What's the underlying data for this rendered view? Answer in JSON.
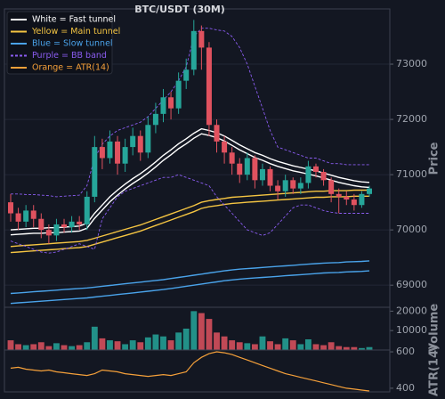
{
  "chart_data": [
    {
      "type": "candlestick",
      "title": "BTC/USDT (30M)",
      "ylabel": "Price",
      "up_color": "#26a69a",
      "down_color": "#e0525f",
      "open": [
        70500,
        70300,
        70150,
        70350,
        70200,
        70000,
        69900,
        70100,
        70050,
        70150,
        70100,
        70600,
        71500,
        71300,
        71600,
        71200,
        71500,
        71700,
        71400,
        71900,
        72100,
        72400,
        72200,
        72700,
        72900,
        73600,
        73300,
        71900,
        71600,
        71400,
        71200,
        71000,
        71300,
        70900,
        71100,
        70800,
        70700,
        70900,
        70750,
        70850,
        71150,
        71050,
        70900,
        70650,
        70600,
        70550,
        70450,
        70650
      ],
      "high": [
        70650,
        70400,
        70450,
        70450,
        70300,
        70100,
        70200,
        70200,
        70250,
        70250,
        70700,
        71700,
        71650,
        71800,
        71700,
        71650,
        71850,
        71800,
        72050,
        72300,
        72550,
        72500,
        72850,
        73100,
        73800,
        73700,
        73400,
        72000,
        71700,
        71500,
        71300,
        71400,
        71350,
        71200,
        71150,
        70900,
        71000,
        70950,
        70950,
        71250,
        71200,
        71100,
        70950,
        70750,
        70700,
        70650,
        70700,
        70800
      ],
      "low": [
        70150,
        70000,
        70050,
        70050,
        69850,
        69750,
        69800,
        69950,
        69950,
        70000,
        70000,
        70500,
        71100,
        71200,
        71000,
        71050,
        71350,
        71250,
        71300,
        71750,
        71950,
        72000,
        72100,
        72550,
        72800,
        72900,
        71700,
        71400,
        71200,
        71000,
        70850,
        70900,
        70750,
        70800,
        70700,
        70550,
        70600,
        70650,
        70650,
        70750,
        70950,
        70800,
        70500,
        70300,
        70450,
        70350,
        70400,
        70600
      ],
      "close": [
        70300,
        70150,
        70350,
        70200,
        70000,
        69900,
        70100,
        70050,
        70150,
        70100,
        70600,
        71500,
        71300,
        71600,
        71200,
        71500,
        71700,
        71400,
        71900,
        72100,
        72400,
        72200,
        72700,
        72900,
        73600,
        73300,
        71900,
        71600,
        71400,
        71200,
        71000,
        71300,
        70900,
        71100,
        70800,
        70700,
        70900,
        70750,
        70850,
        71150,
        71050,
        70900,
        70650,
        70600,
        70550,
        70450,
        70650,
        70750
      ],
      "series": [
        {
          "name": "White = Fast tunnel",
          "color": "#ffffff",
          "dash": false,
          "upper": [
            70000,
            70010,
            70020,
            70030,
            70030,
            70040,
            70040,
            70050,
            70060,
            70070,
            70120,
            70300,
            70450,
            70600,
            70720,
            70830,
            70930,
            71020,
            71120,
            71230,
            71350,
            71450,
            71560,
            71650,
            71750,
            71830,
            71800,
            71760,
            71700,
            71620,
            71540,
            71470,
            71400,
            71350,
            71290,
            71240,
            71200,
            71160,
            71130,
            71100,
            71070,
            71030,
            70990,
            70950,
            70920,
            70890,
            70870,
            70860
          ],
          "lower": [
            69910,
            69920,
            69930,
            69940,
            69940,
            69950,
            69950,
            69960,
            69970,
            69980,
            70030,
            70210,
            70360,
            70510,
            70630,
            70740,
            70840,
            70930,
            71030,
            71140,
            71260,
            71360,
            71470,
            71560,
            71660,
            71740,
            71710,
            71670,
            71610,
            71530,
            71450,
            71380,
            71310,
            71260,
            71200,
            71150,
            71110,
            71070,
            71040,
            71010,
            70980,
            70940,
            70900,
            70860,
            70830,
            70800,
            70780,
            70770
          ]
        },
        {
          "name": "Yellow = Main tunnel",
          "color": "#f5c542",
          "dash": false,
          "upper": [
            69700,
            69710,
            69720,
            69730,
            69740,
            69750,
            69760,
            69770,
            69780,
            69790,
            69810,
            69850,
            69890,
            69930,
            69970,
            70010,
            70050,
            70090,
            70140,
            70190,
            70240,
            70290,
            70340,
            70390,
            70440,
            70500,
            70530,
            70550,
            70570,
            70590,
            70600,
            70610,
            70620,
            70630,
            70640,
            70650,
            70660,
            70670,
            70680,
            70690,
            70700,
            70700,
            70710,
            70710,
            70710,
            70720,
            70720,
            70720
          ],
          "lower": [
            69590,
            69600,
            69610,
            69620,
            69630,
            69640,
            69650,
            69660,
            69670,
            69680,
            69700,
            69740,
            69780,
            69820,
            69860,
            69900,
            69940,
            69980,
            70030,
            70080,
            70130,
            70180,
            70230,
            70280,
            70330,
            70390,
            70420,
            70440,
            70460,
            70480,
            70490,
            70500,
            70510,
            70520,
            70530,
            70540,
            70550,
            70560,
            70570,
            70580,
            70590,
            70590,
            70600,
            70600,
            70600,
            70610,
            70610,
            70610
          ]
        },
        {
          "name": "Blue = Slow tunnel",
          "color": "#4aa3ea",
          "dash": false,
          "upper": [
            68850,
            68860,
            68870,
            68880,
            68890,
            68900,
            68910,
            68920,
            68930,
            68940,
            68950,
            68965,
            68980,
            68995,
            69010,
            69025,
            69040,
            69055,
            69070,
            69085,
            69100,
            69120,
            69140,
            69160,
            69180,
            69200,
            69220,
            69240,
            69260,
            69275,
            69290,
            69300,
            69310,
            69320,
            69330,
            69340,
            69350,
            69360,
            69370,
            69380,
            69390,
            69400,
            69405,
            69410,
            69420,
            69425,
            69430,
            69440
          ],
          "lower": [
            68670,
            68680,
            68690,
            68700,
            68710,
            68720,
            68730,
            68740,
            68750,
            68760,
            68770,
            68785,
            68800,
            68815,
            68830,
            68845,
            68860,
            68875,
            68890,
            68905,
            68920,
            68940,
            68960,
            68980,
            69000,
            69020,
            69040,
            69060,
            69080,
            69095,
            69110,
            69120,
            69130,
            69140,
            69150,
            69160,
            69170,
            69180,
            69190,
            69200,
            69210,
            69220,
            69225,
            69230,
            69240,
            69245,
            69250,
            69260
          ]
        },
        {
          "name": "Purple = BB band",
          "color": "#8a5cf0",
          "dash": true,
          "upper": [
            70650,
            70650,
            70640,
            70640,
            70630,
            70620,
            70600,
            70610,
            70620,
            70630,
            70800,
            71300,
            71550,
            71700,
            71800,
            71850,
            71900,
            71950,
            72050,
            72200,
            72350,
            72500,
            72700,
            72950,
            73500,
            73650,
            73650,
            73620,
            73600,
            73500,
            73300,
            73000,
            72600,
            72200,
            71800,
            71500,
            71450,
            71400,
            71350,
            71300,
            71300,
            71250,
            71200,
            71200,
            71180,
            71180,
            71180,
            71180
          ],
          "lower": [
            69800,
            69750,
            69700,
            69650,
            69600,
            69580,
            69600,
            69650,
            69700,
            69750,
            69700,
            69650,
            70200,
            70400,
            70600,
            70700,
            70750,
            70800,
            70850,
            70900,
            70950,
            70950,
            71000,
            70950,
            70900,
            70850,
            70800,
            70600,
            70450,
            70300,
            70150,
            70000,
            69950,
            69900,
            69950,
            70100,
            70250,
            70400,
            70450,
            70450,
            70400,
            70350,
            70320,
            70300,
            70300,
            70300,
            70300,
            70300
          ]
        }
      ],
      "ylim": [
        68600,
        74000
      ],
      "yticks": [
        69000,
        70000,
        71000,
        72000,
        73000
      ],
      "grid": true
    },
    {
      "type": "bar",
      "ylabel": "Volume",
      "values": [
        5000,
        3000,
        2500,
        3000,
        4000,
        2000,
        3500,
        2500,
        2000,
        2500,
        4000,
        12000,
        6000,
        5000,
        4500,
        3000,
        5000,
        4000,
        6500,
        8000,
        7000,
        5000,
        9000,
        11000,
        20000,
        19000,
        16000,
        9000,
        7000,
        5000,
        4000,
        3500,
        3000,
        7000,
        4500,
        3000,
        6000,
        5000,
        3000,
        5500,
        3000,
        2500,
        4000,
        2000,
        1500,
        1500,
        1000,
        1500
      ],
      "ylim": [
        0,
        22000
      ],
      "yticks": [
        10000,
        20000
      ]
    },
    {
      "type": "line",
      "ylabel": "ATR(14)",
      "series": [
        {
          "name": "Orange = ATR(14)",
          "color": "#f5a03a",
          "values": [
            510,
            515,
            505,
            500,
            495,
            500,
            490,
            485,
            480,
            475,
            470,
            480,
            500,
            495,
            490,
            480,
            475,
            470,
            465,
            470,
            475,
            470,
            480,
            490,
            540,
            570,
            590,
            600,
            595,
            585,
            570,
            555,
            540,
            525,
            510,
            495,
            480,
            470,
            460,
            450,
            440,
            430,
            420,
            410,
            400,
            395,
            390,
            385
          ]
        }
      ],
      "ylim": [
        380,
        610
      ],
      "yticks": [
        400,
        600
      ]
    }
  ]
}
